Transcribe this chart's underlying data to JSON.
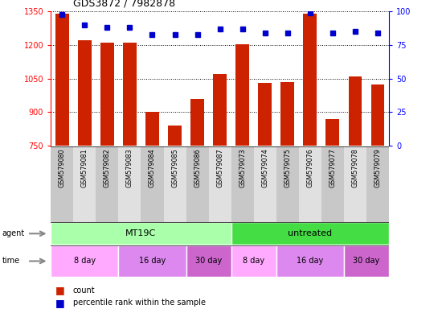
{
  "title": "GDS3872 / 7982878",
  "samples": [
    "GSM579080",
    "GSM579081",
    "GSM579082",
    "GSM579083",
    "GSM579084",
    "GSM579085",
    "GSM579086",
    "GSM579087",
    "GSM579073",
    "GSM579074",
    "GSM579075",
    "GSM579076",
    "GSM579077",
    "GSM579078",
    "GSM579079"
  ],
  "counts": [
    1340,
    1220,
    1210,
    1210,
    900,
    840,
    960,
    1070,
    1205,
    1030,
    1035,
    1340,
    870,
    1060,
    1025
  ],
  "percentile_ranks": [
    98,
    90,
    88,
    88,
    83,
    83,
    83,
    87,
    87,
    84,
    84,
    99,
    84,
    85,
    84
  ],
  "ylim_left": [
    750,
    1350
  ],
  "ylim_right": [
    0,
    100
  ],
  "yticks_left": [
    750,
    900,
    1050,
    1200,
    1350
  ],
  "yticks_right": [
    0,
    25,
    50,
    75,
    100
  ],
  "bar_color": "#cc2200",
  "dot_color": "#0000cc",
  "agent_groups": [
    {
      "label": "MT19C",
      "start": 0,
      "end": 8,
      "color": "#aaffaa"
    },
    {
      "label": "untreated",
      "start": 8,
      "end": 15,
      "color": "#44dd44"
    }
  ],
  "time_groups": [
    {
      "label": "8 day",
      "start": 0,
      "end": 3,
      "color": "#ffaaff"
    },
    {
      "label": "16 day",
      "start": 3,
      "end": 6,
      "color": "#dd88ee"
    },
    {
      "label": "30 day",
      "start": 6,
      "end": 8,
      "color": "#cc66cc"
    },
    {
      "label": "8 day",
      "start": 8,
      "end": 10,
      "color": "#ffaaff"
    },
    {
      "label": "16 day",
      "start": 10,
      "end": 13,
      "color": "#dd88ee"
    },
    {
      "label": "30 day",
      "start": 13,
      "end": 15,
      "color": "#cc66cc"
    }
  ],
  "legend_count_label": "count",
  "legend_pct_label": "percentile rank within the sample",
  "col_colors_even": "#c8c8c8",
  "col_colors_odd": "#e0e0e0"
}
